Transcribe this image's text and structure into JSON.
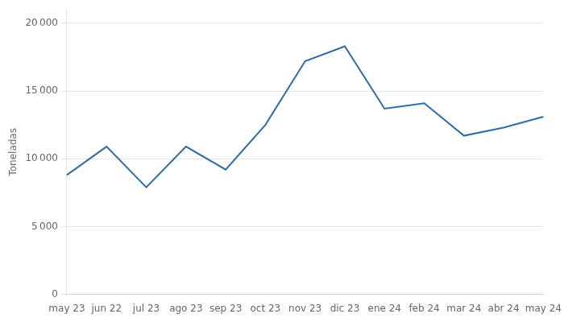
{
  "chart_data": {
    "type": "line",
    "y_label": "Toneladas",
    "categories": [
      "may 23",
      "jun 22",
      "jul 23",
      "ago 23",
      "sep 23",
      "oct 23",
      "nov 23",
      "dic 23",
      "ene 24",
      "feb 24",
      "mar 24",
      "abr 24",
      "may 24"
    ],
    "values": [
      8800,
      10900,
      7900,
      10900,
      9200,
      12500,
      17200,
      18300,
      13700,
      14100,
      11700,
      12300,
      13100
    ],
    "color": "#2e6da4",
    "ylim": [
      0,
      21000
    ],
    "yticks": [
      0,
      {
        "value": 5000,
        "label": "5 000"
      },
      {
        "value": 10000,
        "label": "10 000"
      },
      {
        "value": 15000,
        "label": "15 000"
      },
      {
        "value": 20000,
        "label": "20 000"
      }
    ],
    "grid": true
  }
}
